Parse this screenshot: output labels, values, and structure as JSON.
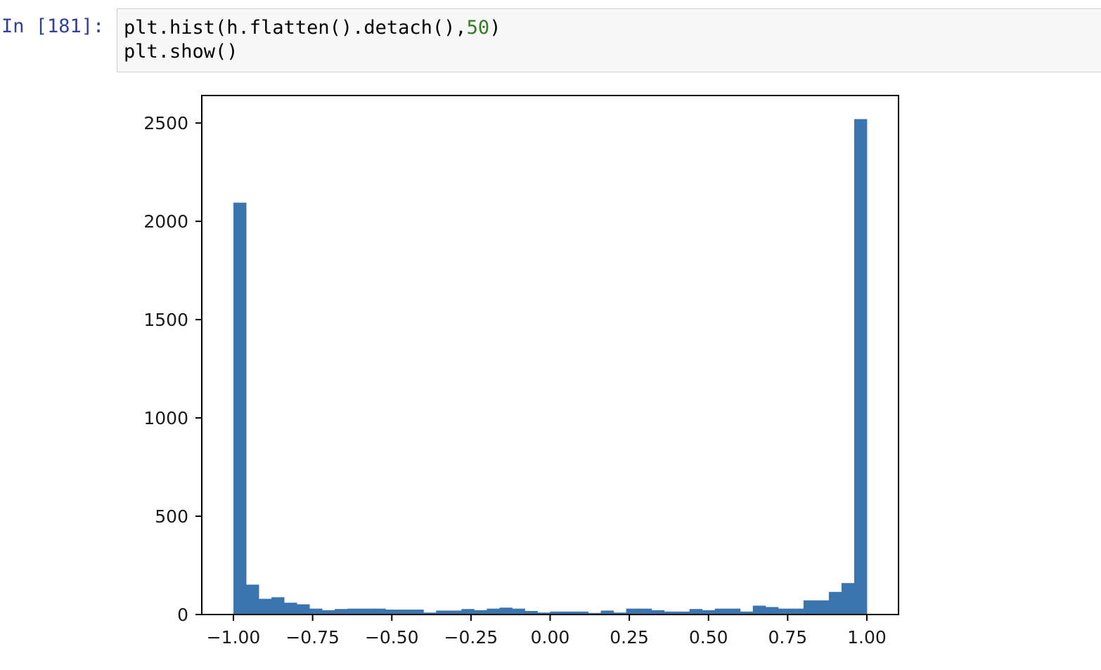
{
  "cell": {
    "prompt": "In [181]:",
    "code_line1_a": "plt.hist(h.flatten().detach(),",
    "code_line1_num": "50",
    "code_line1_b": ")",
    "code_line2": "plt.show()"
  },
  "colors": {
    "bar": "#3a75b0",
    "prompt": "#303f9f",
    "number_literal": "#2e7d1f",
    "cell_background": "#f7f7f7"
  },
  "chart_data": {
    "type": "bar",
    "title": "",
    "xlabel": "",
    "ylabel": "",
    "bins": 50,
    "bin_range": [
      -1.0,
      1.0
    ],
    "values": [
      2095,
      152,
      80,
      88,
      60,
      52,
      30,
      22,
      28,
      30,
      30,
      30,
      25,
      25,
      25,
      10,
      20,
      20,
      28,
      22,
      30,
      35,
      30,
      18,
      10,
      15,
      15,
      15,
      8,
      20,
      10,
      30,
      30,
      22,
      15,
      15,
      28,
      22,
      30,
      30,
      15,
      45,
      38,
      30,
      30,
      72,
      72,
      115,
      160,
      2520
    ],
    "xlim": [
      -1.1,
      1.1
    ],
    "ylim": [
      0,
      2640
    ],
    "xticks": [
      -1.0,
      -0.75,
      -0.5,
      -0.25,
      0.0,
      0.25,
      0.5,
      0.75,
      1.0
    ],
    "xtick_labels": [
      "−1.00",
      "−0.75",
      "−0.50",
      "−0.25",
      "0.00",
      "0.25",
      "0.50",
      "0.75",
      "1.00"
    ],
    "yticks": [
      0,
      500,
      1000,
      1500,
      2000,
      2500
    ],
    "ytick_labels": [
      "0",
      "500",
      "1000",
      "1500",
      "2000",
      "2500"
    ],
    "grid": false,
    "legend": "none"
  }
}
